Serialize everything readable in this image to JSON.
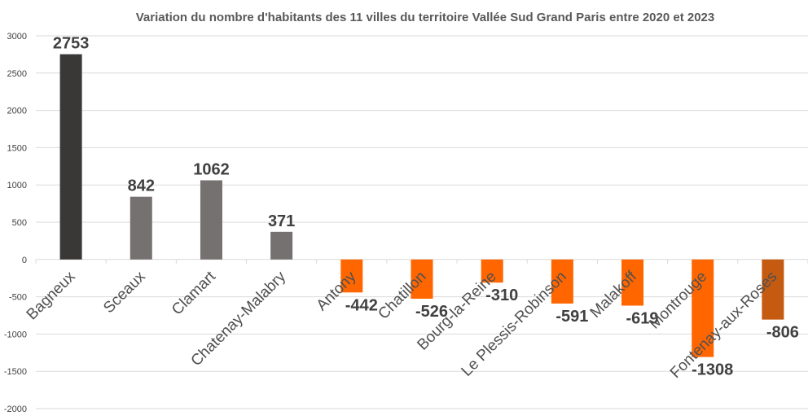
{
  "chart_data": {
    "type": "bar",
    "title": "Variation du nombre d'habitants des 11 villes du territoire Vallée Sud Grand Paris entre 2020 et 2023",
    "xlabel": "",
    "ylabel": "",
    "ylim": [
      -2000,
      3000
    ],
    "yticks": [
      "3000",
      "2500",
      "2000",
      "1500",
      "1000",
      "500",
      "0",
      "-500",
      "-1000",
      "-1500",
      "-2000"
    ],
    "ytick_values": [
      3000,
      2500,
      2000,
      1500,
      1000,
      500,
      0,
      -500,
      -1000,
      -1500,
      -2000
    ],
    "grid": true,
    "legend": "none",
    "categories": [
      "Bagneux",
      "Sceaux",
      "Clamart",
      "Chatenay-Malabry",
      "Antony",
      "Chatillon",
      "Bourg-la-Reine",
      "Le Plessis-Robinson",
      "Malakoff",
      "Montrouge",
      "Fontenay-aux-Roses"
    ],
    "values": [
      2753,
      842,
      1062,
      371,
      -442,
      -526,
      -310,
      -591,
      -619,
      -1308,
      -806
    ],
    "value_labels": [
      "2753",
      "842",
      "1062",
      "371",
      "-442",
      "-526",
      "-310",
      "-591",
      "-619",
      "-1308",
      "-806"
    ],
    "colors": [
      "#3a3836",
      "#767171",
      "#767171",
      "#767171",
      "#ff6600",
      "#ff6600",
      "#ff6600",
      "#ff6600",
      "#ff6600",
      "#ff6600",
      "#c55a11"
    ]
  }
}
